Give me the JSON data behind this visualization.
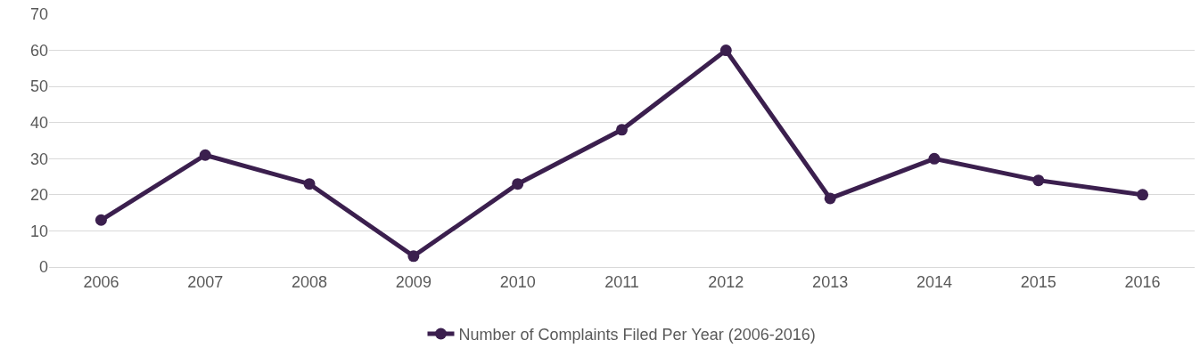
{
  "chart_data": {
    "type": "line",
    "categories": [
      "2006",
      "2007",
      "2008",
      "2009",
      "2010",
      "2011",
      "2012",
      "2013",
      "2014",
      "2015",
      "2016"
    ],
    "series": [
      {
        "name": "Number of Complaints Filed Per Year (2006-2016)",
        "color": "#3b1f4e",
        "values": [
          13,
          31,
          23,
          3,
          23,
          38,
          60,
          19,
          30,
          24,
          20
        ]
      }
    ],
    "ylim": [
      0,
      70
    ],
    "yticks": [
      0,
      10,
      20,
      30,
      40,
      50,
      60,
      70
    ],
    "grid": "y",
    "legend": "bottom",
    "marker": "circle",
    "line_style": "solid"
  }
}
